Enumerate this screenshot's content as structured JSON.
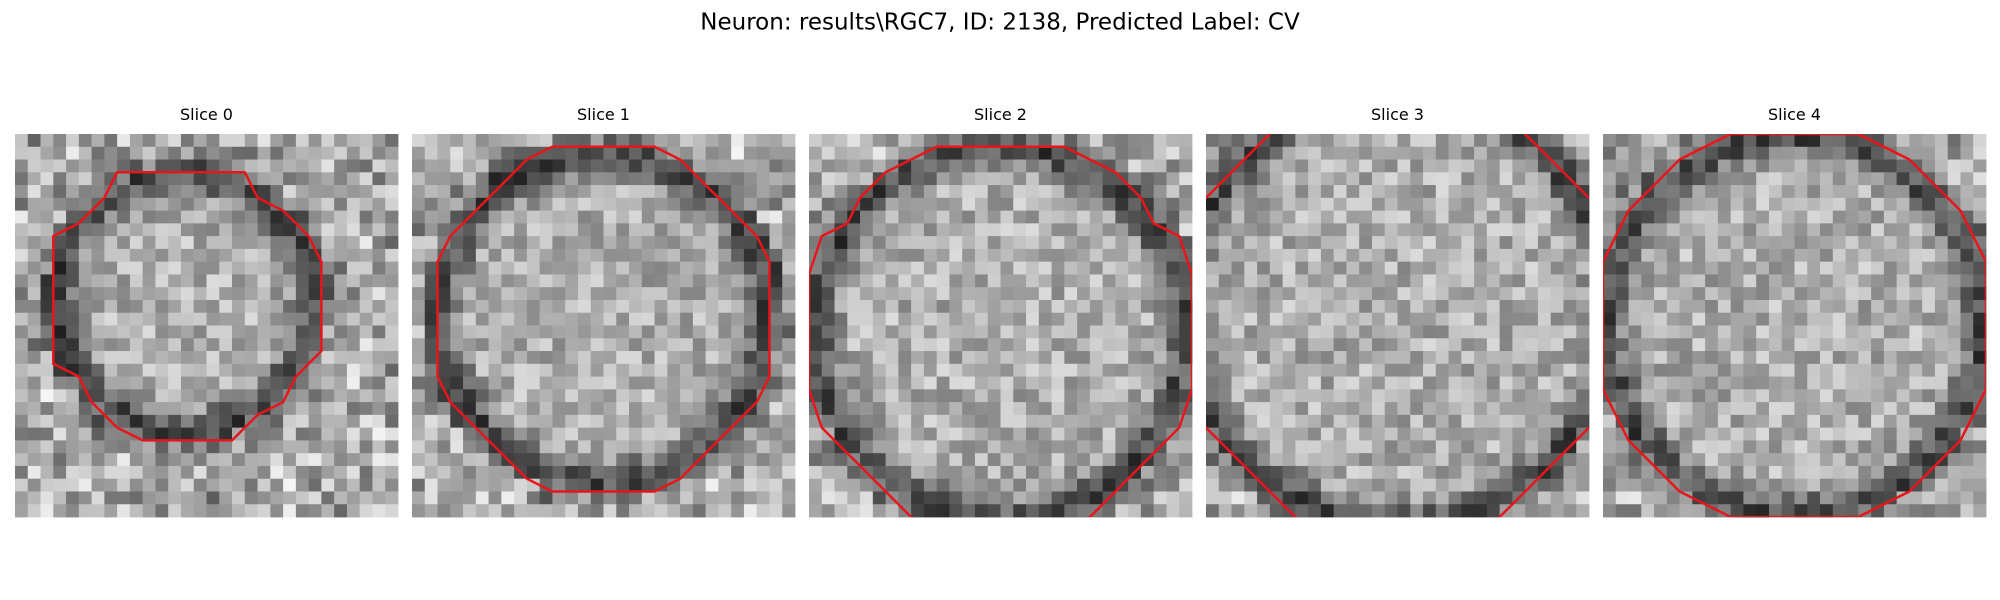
{
  "title": "Neuron: results\\RGC7, ID: 2138, Predicted Label: CV",
  "panels": [
    {
      "title": "Slice 0"
    },
    {
      "title": "Slice 1"
    },
    {
      "title": "Slice 2"
    },
    {
      "title": "Slice 3"
    },
    {
      "title": "Slice 4"
    }
  ]
}
